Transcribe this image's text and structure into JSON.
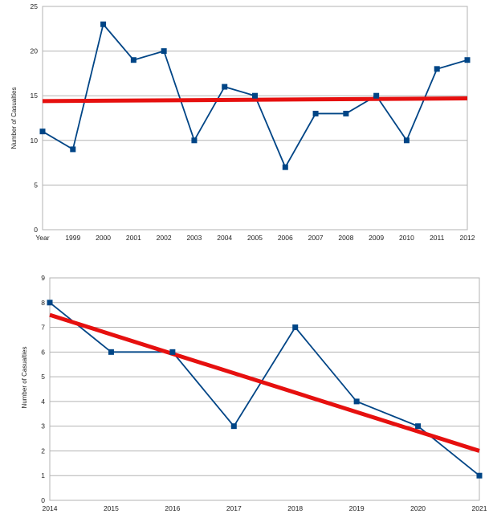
{
  "chart_data": [
    {
      "type": "line",
      "title": "",
      "xlabel": "",
      "ylabel": "Number of Casualties",
      "ylim": [
        0,
        25
      ],
      "yticks": [
        0,
        5,
        10,
        15,
        20,
        25
      ],
      "grid": true,
      "legend": "none",
      "x": [
        "Year",
        "1999",
        "2000",
        "2001",
        "2002",
        "2003",
        "2004",
        "2005",
        "2006",
        "2007",
        "2008",
        "2009",
        "2010",
        "2011",
        "2012"
      ],
      "series": [
        {
          "values": [
            11,
            9,
            23,
            19,
            20,
            10,
            16,
            15,
            7,
            13,
            13,
            15,
            10,
            18,
            19
          ],
          "color": "#004586",
          "marker": "square"
        }
      ],
      "trendline": {
        "start": 14.4,
        "end": 14.7,
        "color": "#e6100f"
      }
    },
    {
      "type": "line",
      "title": "",
      "xlabel": "",
      "ylabel": "Number of Casualties",
      "ylim": [
        0,
        9
      ],
      "yticks": [
        0,
        1,
        2,
        3,
        4,
        5,
        6,
        7,
        8,
        9
      ],
      "grid": true,
      "legend": "none",
      "x": [
        "2014",
        "2015",
        "2016",
        "2017",
        "2018",
        "2019",
        "2020",
        "2021"
      ],
      "series": [
        {
          "values": [
            8,
            6,
            6,
            3,
            7,
            4,
            3,
            1
          ],
          "color": "#004586",
          "marker": "square"
        }
      ],
      "trendline": {
        "start": 7.5,
        "end": 2.0,
        "color": "#e6100f"
      }
    }
  ]
}
